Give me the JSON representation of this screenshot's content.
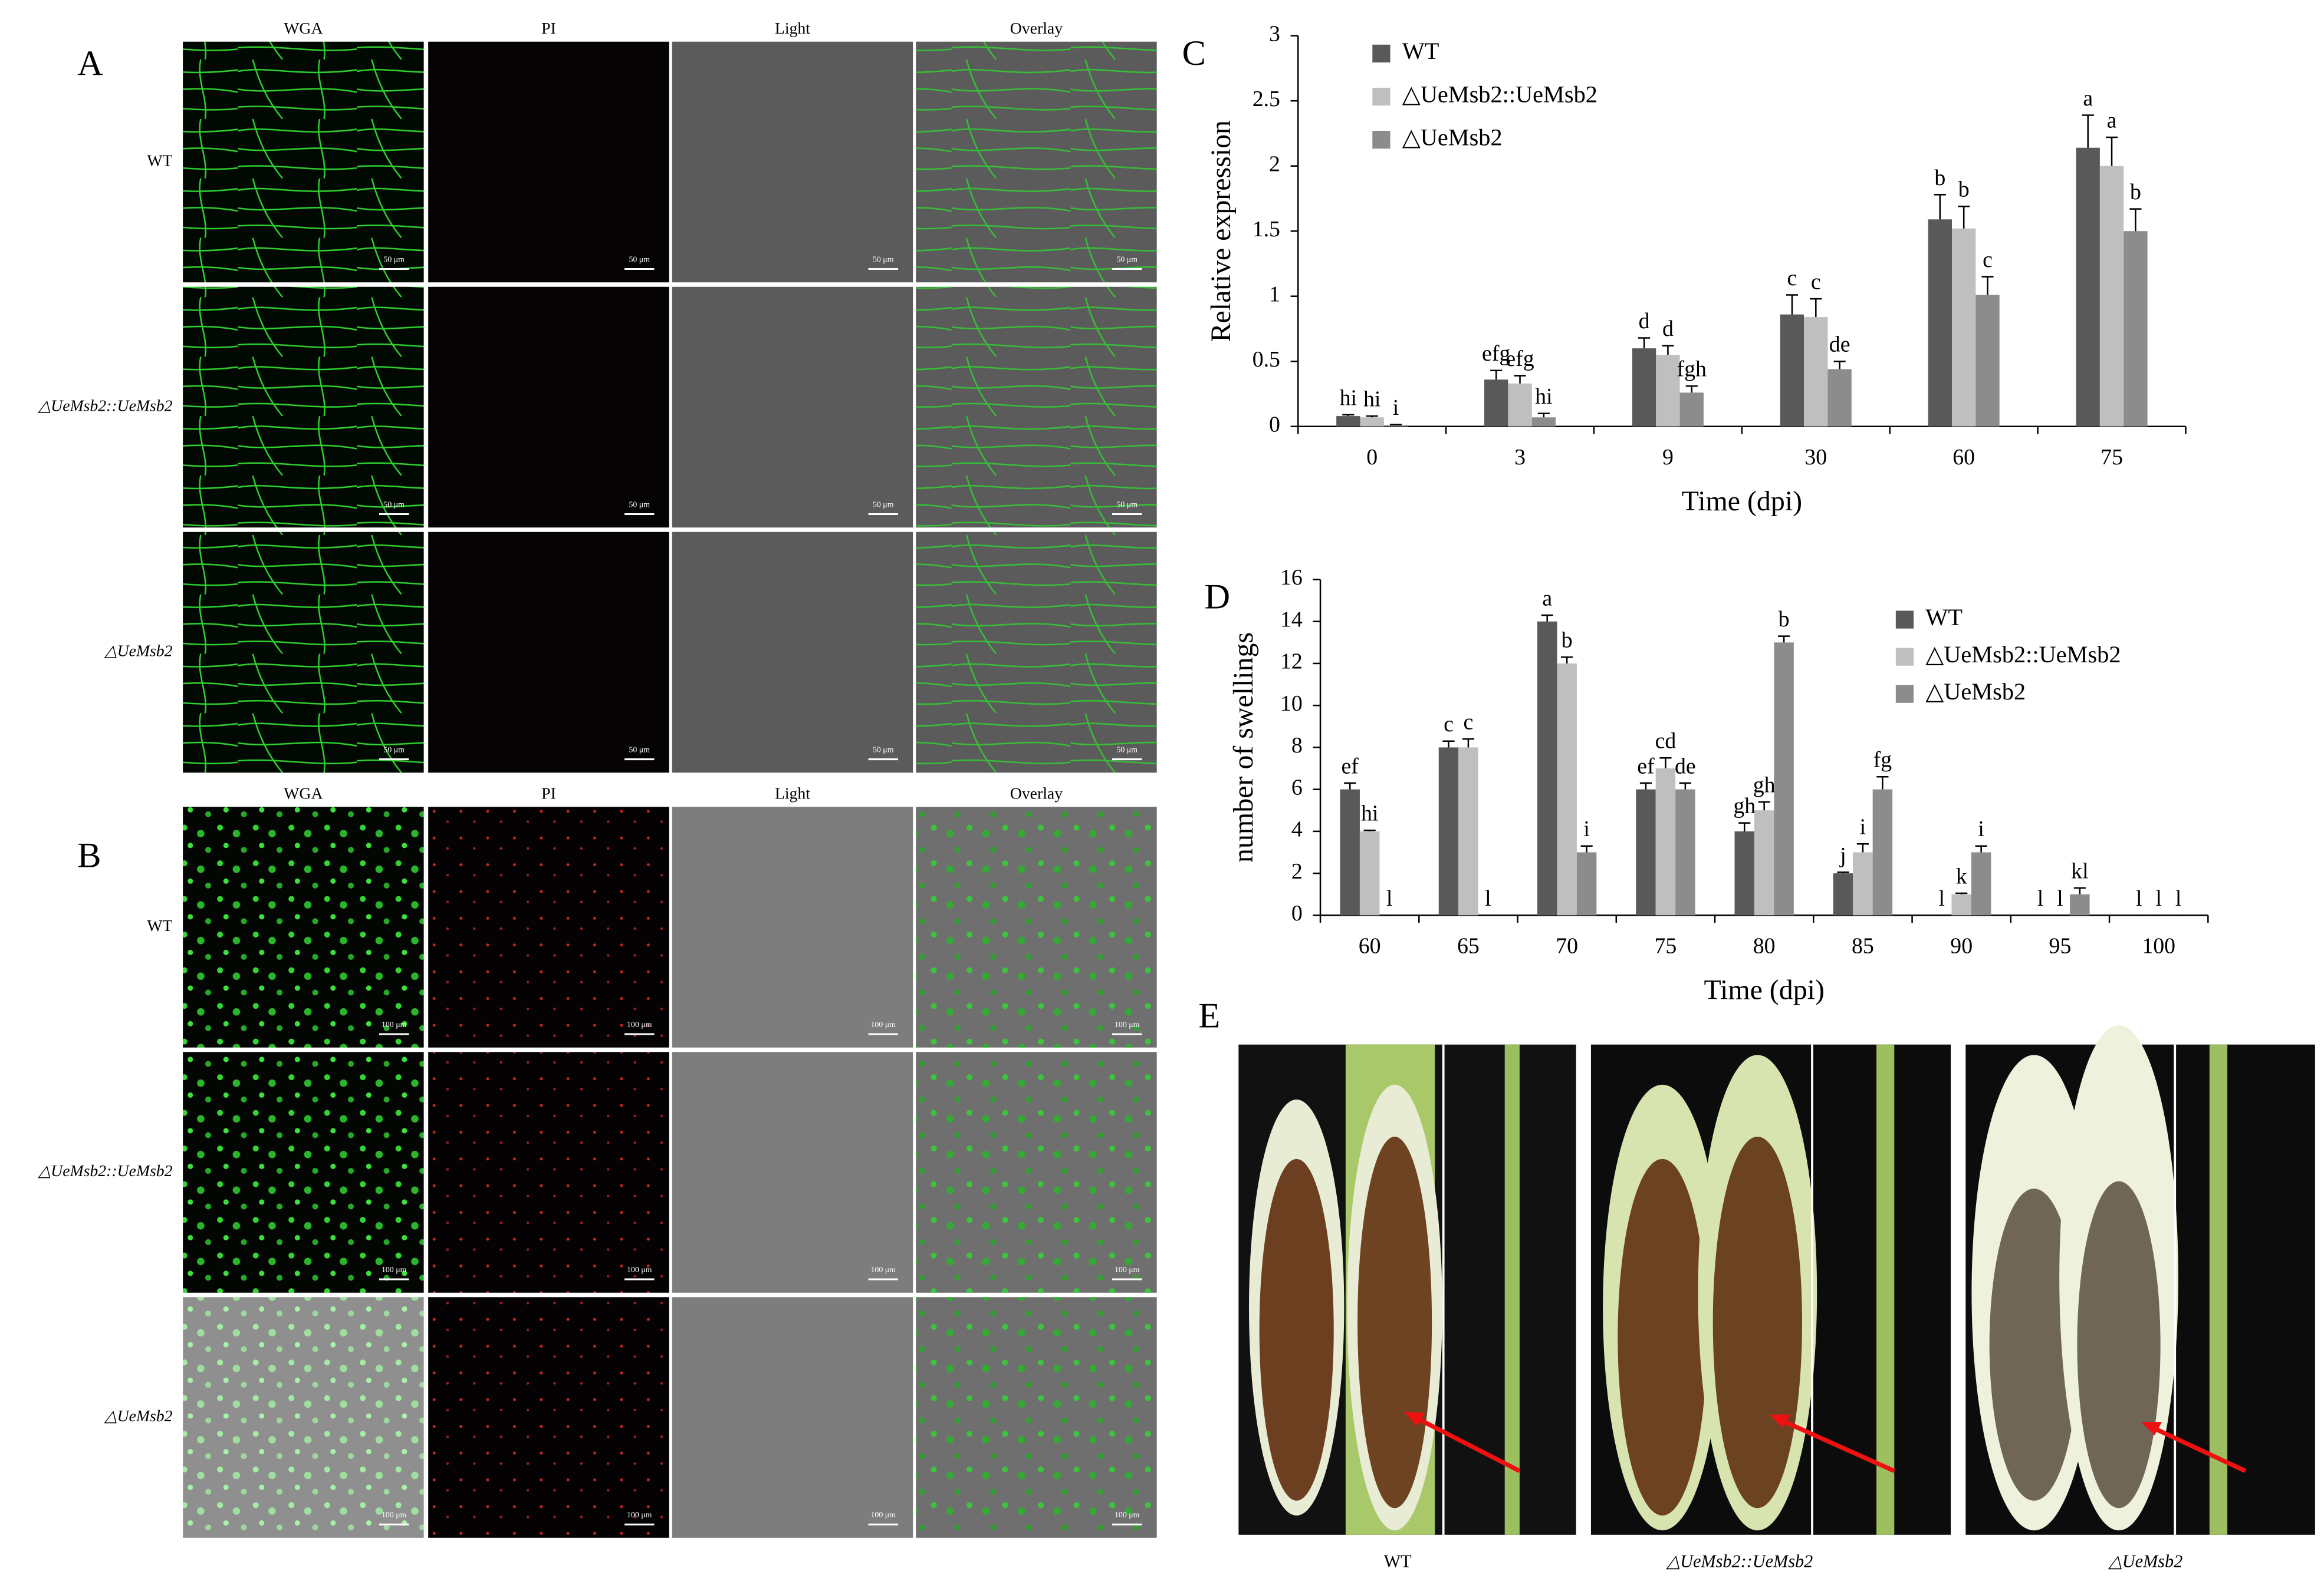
{
  "panels": {
    "A": {
      "label": "A",
      "columns": [
        "WGA",
        "PI",
        "Light",
        "Overlay"
      ],
      "rows": [
        "WT",
        "△UeMsb2::UeMsb2",
        "△UeMsb2"
      ],
      "scale_bar": "50 μm"
    },
    "B": {
      "label": "B",
      "columns": [
        "WGA",
        "PI",
        "Light",
        "Overlay"
      ],
      "rows": [
        "WT",
        "△UeMsb2::UeMsb2",
        "△UeMsb2"
      ],
      "scale_bar": "100 μm"
    },
    "E": {
      "label": "E",
      "captions": [
        "WT",
        "△UeMsb2::UeMsb2",
        "△UeMsb2"
      ]
    }
  },
  "chart_data": [
    {
      "type": "bar",
      "label": "C",
      "xlabel": "Time (dpi)",
      "ylabel": "Relative expression",
      "categories": [
        "0",
        "3",
        "9",
        "30",
        "60",
        "75"
      ],
      "ylim": [
        0,
        3
      ],
      "yticks": [
        0,
        0.5,
        1,
        1.5,
        2,
        2.5,
        3
      ],
      "legend": "upper left",
      "series": [
        {
          "name": "WT",
          "color": "#595959",
          "values": [
            0.08,
            0.36,
            0.6,
            0.86,
            1.59,
            2.14
          ],
          "errors": [
            0.01,
            0.07,
            0.08,
            0.15,
            0.19,
            0.25
          ],
          "letters": [
            "hi",
            "efg",
            "d",
            "c",
            "b",
            "a"
          ]
        },
        {
          "name": "△UeMsb2::UeMsb2",
          "color": "#bfbfbf",
          "values": [
            0.07,
            0.33,
            0.55,
            0.84,
            1.52,
            2.0
          ],
          "errors": [
            0.01,
            0.06,
            0.07,
            0.14,
            0.17,
            0.22
          ],
          "letters": [
            "hi",
            "efg",
            "d",
            "c",
            "b",
            "a"
          ]
        },
        {
          "name": "△UeMsb2",
          "color": "#8c8c8c",
          "values": [
            0.01,
            0.07,
            0.26,
            0.44,
            1.01,
            1.5
          ],
          "errors": [
            0.005,
            0.03,
            0.05,
            0.06,
            0.14,
            0.17
          ],
          "letters": [
            "i",
            "hi",
            "fgh",
            "de",
            "c",
            "b"
          ]
        }
      ]
    },
    {
      "type": "bar",
      "label": "D",
      "xlabel": "Time (dpi)",
      "ylabel": "number of swellings",
      "categories": [
        "60",
        "65",
        "70",
        "75",
        "80",
        "85",
        "90",
        "95",
        "100"
      ],
      "ylim": [
        0,
        16
      ],
      "yticks": [
        0,
        2,
        4,
        6,
        8,
        10,
        12,
        14,
        16
      ],
      "legend": "right",
      "series": [
        {
          "name": "WT",
          "color": "#595959",
          "values": [
            6,
            8,
            14,
            6,
            4,
            2,
            0,
            0,
            0
          ],
          "errors": [
            0.3,
            0.3,
            0.3,
            0.3,
            0.4,
            0.05,
            0,
            0,
            0
          ],
          "letters": [
            "ef",
            "c",
            "a",
            "ef",
            "gh",
            "j",
            "l",
            "l",
            "l"
          ]
        },
        {
          "name": "△UeMsb2::UeMsb2",
          "color": "#bfbfbf",
          "values": [
            4,
            8,
            12,
            7,
            5,
            3,
            1,
            0,
            0
          ],
          "errors": [
            0.05,
            0.4,
            0.3,
            0.5,
            0.4,
            0.4,
            0.05,
            0,
            0
          ],
          "letters": [
            "hi",
            "c",
            "b",
            "cd",
            "gh",
            "i",
            "k",
            "l",
            "l"
          ]
        },
        {
          "name": "△UeMsb2",
          "color": "#8c8c8c",
          "values": [
            0,
            0,
            3,
            6,
            13,
            6,
            3,
            1,
            0
          ],
          "errors": [
            0,
            0,
            0.3,
            0.3,
            0.3,
            0.6,
            0.3,
            0.3,
            0
          ],
          "letters": [
            "l",
            "l",
            "i",
            "de",
            "b",
            "fg",
            "i",
            "kl",
            "l"
          ]
        }
      ]
    }
  ]
}
